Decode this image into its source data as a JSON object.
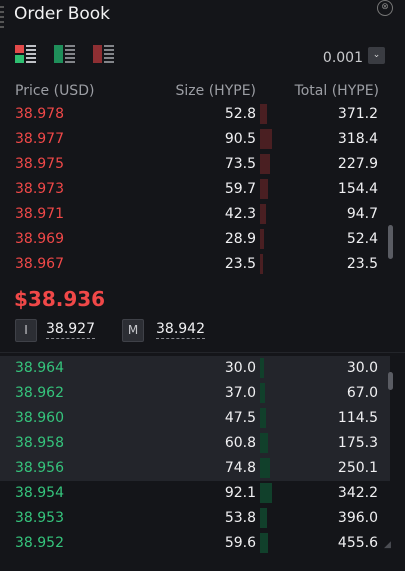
{
  "title": "Order Book",
  "close_glyph": "⊗",
  "tick_size": "0.001",
  "tick_dropdown_glyph": "⌄",
  "columns": {
    "price": "Price (USD)",
    "size": "Size (HYPE)",
    "total": "Total (HYPE)"
  },
  "asks": [
    {
      "price": "38.978",
      "size": "52.8",
      "total": "371.2"
    },
    {
      "price": "38.977",
      "size": "90.5",
      "total": "318.4"
    },
    {
      "price": "38.975",
      "size": "73.5",
      "total": "227.9"
    },
    {
      "price": "38.973",
      "size": "59.7",
      "total": "154.4"
    },
    {
      "price": "38.971",
      "size": "42.3",
      "total": "94.7"
    },
    {
      "price": "38.969",
      "size": "28.9",
      "total": "52.4"
    },
    {
      "price": "38.967",
      "size": "23.5",
      "total": "23.5"
    }
  ],
  "mid_price": "$38.936",
  "index_label": "I",
  "index_price": "38.927",
  "mark_label": "M",
  "mark_price": "38.942",
  "bids": [
    {
      "price": "38.964",
      "size": "30.0",
      "total": "30.0"
    },
    {
      "price": "38.962",
      "size": "37.0",
      "total": "67.0"
    },
    {
      "price": "38.960",
      "size": "47.5",
      "total": "114.5"
    },
    {
      "price": "38.958",
      "size": "60.8",
      "total": "175.3"
    },
    {
      "price": "38.956",
      "size": "74.8",
      "total": "250.1"
    },
    {
      "price": "38.954",
      "size": "92.1",
      "total": "342.2"
    },
    {
      "price": "38.953",
      "size": "53.8",
      "total": "396.0"
    },
    {
      "price": "38.952",
      "size": "59.6",
      "total": "455.6"
    }
  ],
  "colors": {
    "ask": "#f04848",
    "bid": "#35c47c",
    "background": "#141519"
  },
  "icons": [
    "drag-handle-icon",
    "close-icon",
    "view-both-icon",
    "view-bids-icon",
    "view-asks-icon",
    "chevron-down-icon"
  ]
}
